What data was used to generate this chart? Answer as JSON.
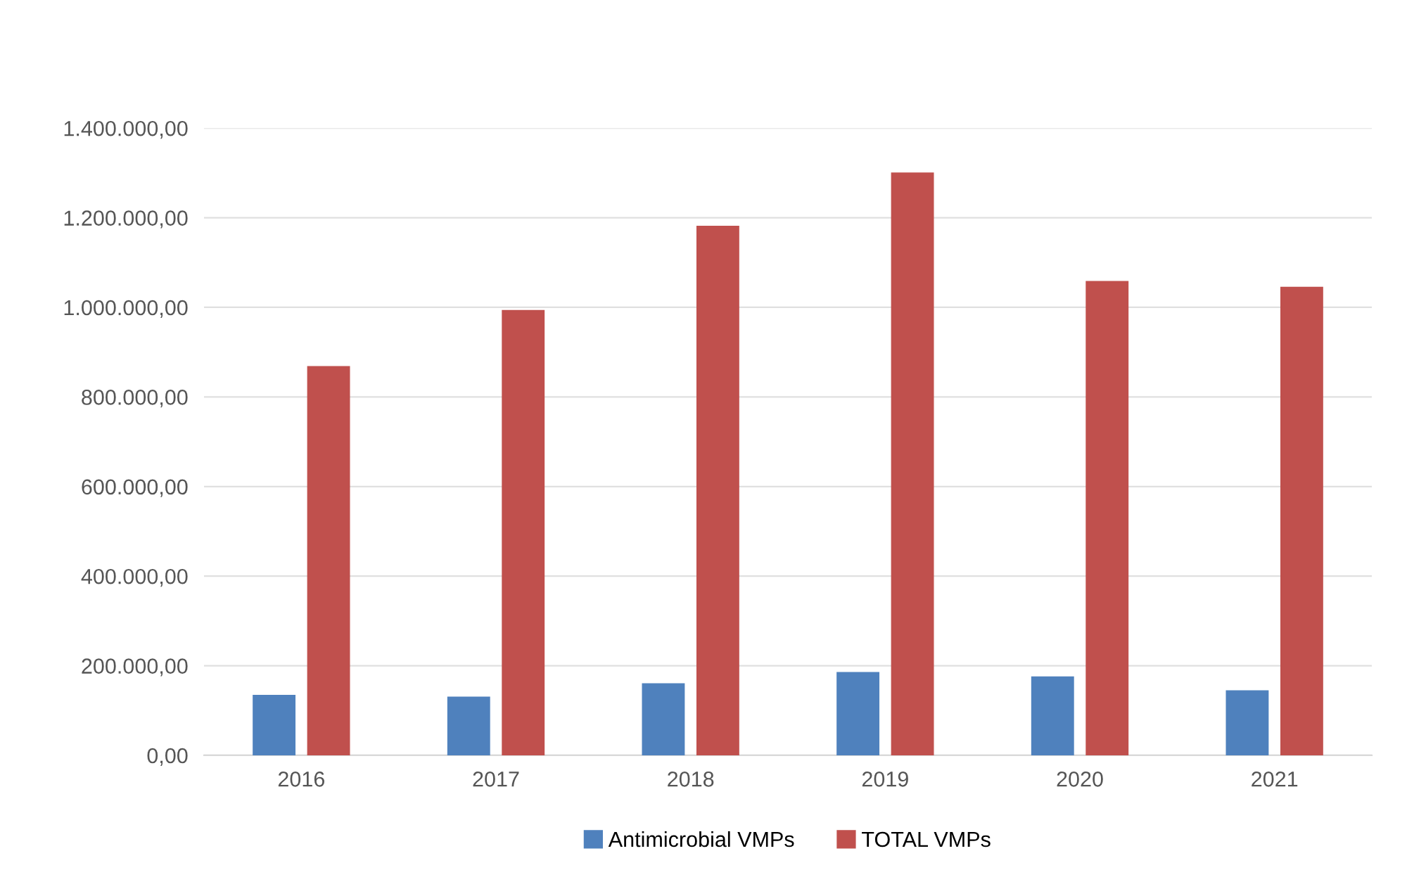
{
  "chart_data": {
    "type": "bar",
    "categories": [
      "2016",
      "2017",
      "2018",
      "2019",
      "2020",
      "2021"
    ],
    "series": [
      {
        "name": "Antimicrobial VMPs",
        "color": "#4f81bd",
        "values": [
          135000,
          131000,
          161000,
          186000,
          176000,
          145000
        ]
      },
      {
        "name": "TOTAL VMPs",
        "color": "#c0504d",
        "values": [
          869000,
          994000,
          1182000,
          1301000,
          1059000,
          1046000
        ]
      }
    ],
    "ylim": [
      0,
      1400000
    ],
    "yticks": [
      {
        "value": 0,
        "label": "0,00"
      },
      {
        "value": 200000,
        "label": "200.000,00"
      },
      {
        "value": 400000,
        "label": "400.000,00"
      },
      {
        "value": 600000,
        "label": "600.000,00"
      },
      {
        "value": 800000,
        "label": "800.000,00"
      },
      {
        "value": 1000000,
        "label": "1.000.000,00"
      },
      {
        "value": 1200000,
        "label": "1.200.000,00"
      },
      {
        "value": 1400000,
        "label": "1.400.000,00"
      }
    ],
    "grid": "y",
    "legend": "bottom"
  }
}
